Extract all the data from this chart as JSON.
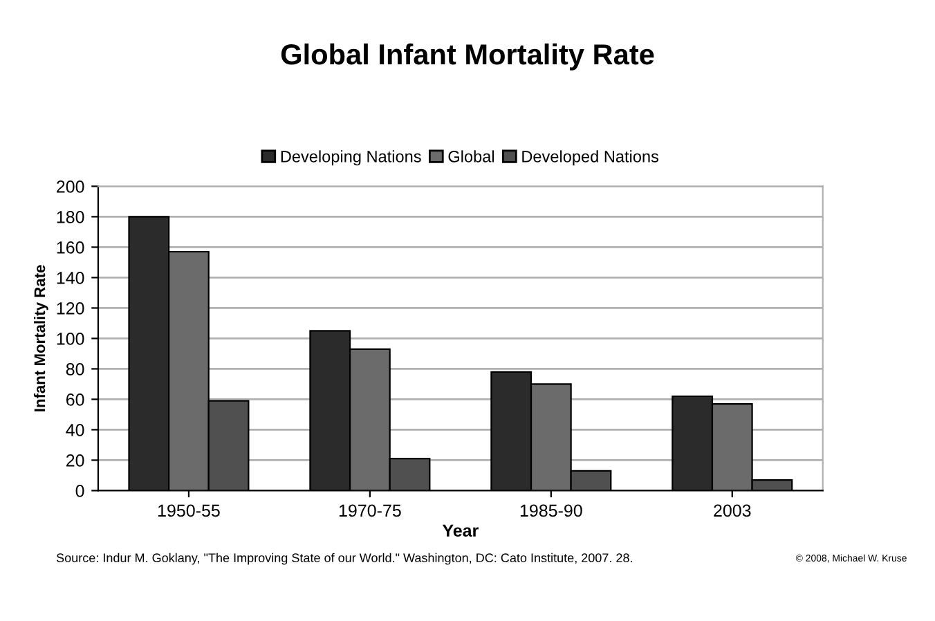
{
  "chart_data": {
    "type": "bar",
    "title": "Global Infant Mortality Rate",
    "xlabel": "Year",
    "ylabel": "Infant Mortality Rate",
    "categories": [
      "1950-55",
      "1970-75",
      "1985-90",
      "2003"
    ],
    "series": [
      {
        "name": "Developing Nations",
        "color": "#2b2b2b",
        "values": [
          180,
          105,
          78,
          62
        ]
      },
      {
        "name": "Global",
        "color": "#6b6b6b",
        "values": [
          157,
          93,
          70,
          57
        ]
      },
      {
        "name": "Developed Nations",
        "color": "#505050",
        "values": [
          59,
          21,
          13,
          7
        ]
      }
    ],
    "ylim": [
      0,
      200
    ],
    "yticks": [
      0,
      20,
      40,
      60,
      80,
      100,
      120,
      140,
      160,
      180,
      200
    ],
    "grid": "y",
    "legend": "top",
    "annotations": [
      "Source: Indur M. Goklany, \"The Improving State of our World.\" Washington, DC: Cato Institute, 2007. 28.",
      "© 2008, Michael W. Kruse"
    ]
  }
}
